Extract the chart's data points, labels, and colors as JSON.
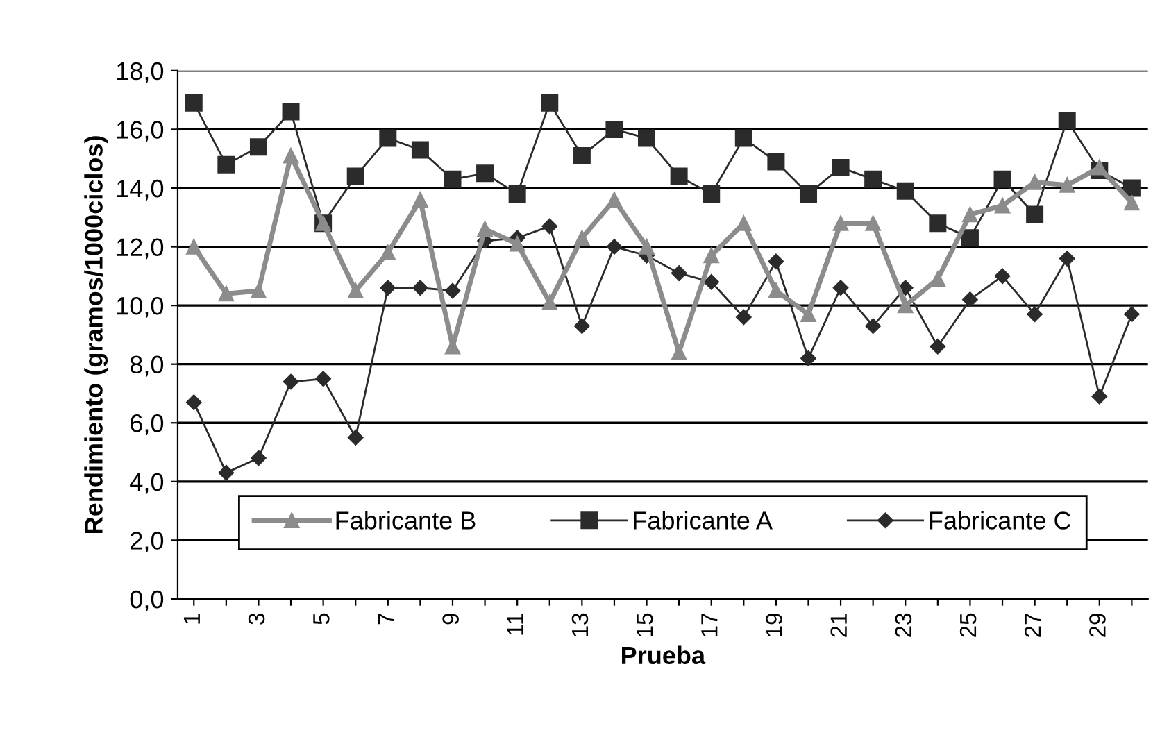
{
  "chart_data": {
    "type": "line",
    "xlabel": "Prueba",
    "ylabel": "Rendimiento (gramos/1000ciclos)",
    "categories": [
      "1",
      null,
      "3",
      null,
      "5",
      null,
      "7",
      null,
      "9",
      null,
      "11",
      null,
      "13",
      null,
      "15",
      null,
      "17",
      null,
      "19",
      null,
      "21",
      null,
      "23",
      null,
      "25",
      null,
      "27",
      null,
      "29",
      null
    ],
    "series": [
      {
        "name": "Fabricante B",
        "color": "#8c8c8c",
        "marker": "triangle",
        "values": [
          12.0,
          10.4,
          10.5,
          15.1,
          12.8,
          10.5,
          11.8,
          13.6,
          8.6,
          12.6,
          12.1,
          10.1,
          12.3,
          13.6,
          12.0,
          8.4,
          11.7,
          12.8,
          10.5,
          9.7,
          12.8,
          12.8,
          10.0,
          10.9,
          13.1,
          13.4,
          14.2,
          14.1,
          14.7,
          13.5
        ]
      },
      {
        "name": "Fabricante A",
        "color": "#2b2b2b",
        "marker": "square",
        "values": [
          16.9,
          14.8,
          15.4,
          16.6,
          12.8,
          14.4,
          15.7,
          15.3,
          14.3,
          14.5,
          13.8,
          16.9,
          15.1,
          16.0,
          15.7,
          14.4,
          13.8,
          15.7,
          14.9,
          13.8,
          14.7,
          14.3,
          13.9,
          12.8,
          12.3,
          14.3,
          13.1,
          16.3,
          14.6,
          14.0
        ]
      },
      {
        "name": "Fabricante C",
        "color": "#2b2b2b",
        "marker": "diamond",
        "values": [
          6.7,
          4.3,
          4.8,
          7.4,
          7.5,
          5.5,
          10.6,
          10.6,
          10.5,
          12.2,
          12.3,
          12.7,
          9.3,
          12.0,
          11.7,
          11.1,
          10.8,
          9.6,
          11.5,
          8.2,
          10.6,
          9.3,
          10.6,
          8.6,
          10.2,
          11.0,
          9.7,
          11.6,
          6.9,
          9.7
        ]
      }
    ],
    "ylim": [
      0,
      18
    ],
    "yticks": [
      {
        "value": 0,
        "label": "0,0"
      },
      {
        "value": 2,
        "label": "2,0"
      },
      {
        "value": 4,
        "label": "4,0"
      },
      {
        "value": 6,
        "label": "6,0"
      },
      {
        "value": 8,
        "label": "8,0"
      },
      {
        "value": 10,
        "label": "10,0"
      },
      {
        "value": 12,
        "label": "12,0"
      },
      {
        "value": 14,
        "label": "14,0"
      },
      {
        "value": 16,
        "label": "16,0"
      },
      {
        "value": 18,
        "label": "18,0"
      }
    ],
    "grid": "y",
    "legend": "bottom"
  }
}
